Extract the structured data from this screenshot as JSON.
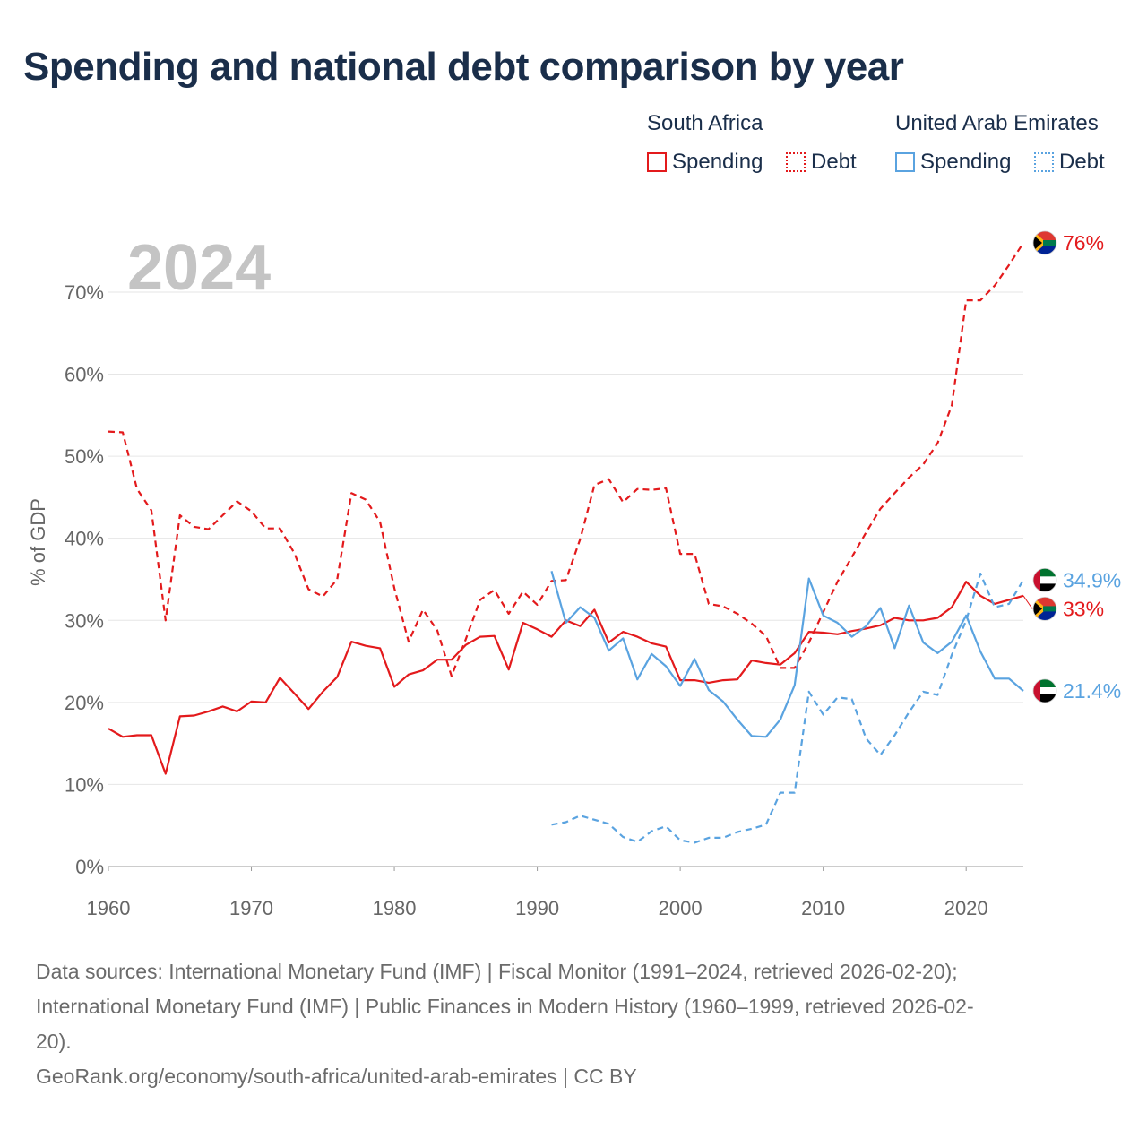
{
  "title": "Spending and national debt comparison by year",
  "legend": {
    "groups": [
      {
        "name": "South Africa",
        "color": "#e31a1c",
        "spending_label": "Spending",
        "debt_label": "Debt"
      },
      {
        "name": "United Arab Emirates",
        "color": "#5aa3e0",
        "spending_label": "Spending",
        "debt_label": "Debt"
      }
    ]
  },
  "chart_data": {
    "type": "line",
    "year_overlay": "2024",
    "ylabel": "% of GDP",
    "xlabel": "",
    "xlim": [
      1960,
      2024
    ],
    "ylim": [
      0,
      76
    ],
    "x_ticks": [
      1960,
      1970,
      1980,
      1990,
      2000,
      2010,
      2020
    ],
    "y_ticks": [
      0,
      10,
      20,
      30,
      40,
      50,
      60,
      70
    ],
    "y_tick_labels": [
      "0%",
      "10%",
      "20%",
      "30%",
      "40%",
      "50%",
      "60%",
      "70%"
    ],
    "series": [
      {
        "name": "South Africa Spending",
        "country": "South Africa",
        "kind": "spending",
        "color": "#e31a1c",
        "dashed": false,
        "end_label": "33%",
        "x": [
          1960,
          1961,
          1962,
          1963,
          1964,
          1965,
          1966,
          1967,
          1968,
          1969,
          1970,
          1971,
          1972,
          1973,
          1974,
          1975,
          1976,
          1977,
          1978,
          1979,
          1980,
          1981,
          1982,
          1983,
          1984,
          1985,
          1986,
          1987,
          1988,
          1989,
          1990,
          1991,
          1992,
          1993,
          1994,
          1995,
          1996,
          1997,
          1998,
          1999,
          2000,
          2001,
          2002,
          2003,
          2004,
          2005,
          2006,
          2007,
          2008,
          2009,
          2010,
          2011,
          2012,
          2013,
          2014,
          2015,
          2016,
          2017,
          2018,
          2019,
          2020,
          2021,
          2022,
          2023,
          2024
        ],
        "y": [
          16.8,
          15.8,
          16,
          16,
          11.3,
          18.3,
          18.4,
          18.9,
          19.5,
          18.9,
          20.1,
          20,
          23,
          21.1,
          19.2,
          21.3,
          23.1,
          27.4,
          26.9,
          26.6,
          21.9,
          23.4,
          23.9,
          25.2,
          25.2,
          27,
          28,
          28.1,
          24,
          29.7,
          28.9,
          28,
          30,
          29.3,
          31.3,
          27.3,
          28.6,
          28,
          27.2,
          26.8,
          22.7,
          22.7,
          22.4,
          22.7,
          22.8,
          25.1,
          24.8,
          24.6,
          26,
          28.6,
          28.5,
          28.3,
          28.7,
          29,
          29.4,
          30.3,
          30,
          30,
          30.3,
          31.6,
          34.7,
          33,
          32,
          32.5,
          33
        ]
      },
      {
        "name": "South Africa Debt",
        "country": "South Africa",
        "kind": "debt",
        "color": "#e31a1c",
        "dashed": true,
        "end_label": "76%",
        "x": [
          1960,
          1961,
          1962,
          1963,
          1964,
          1965,
          1966,
          1967,
          1968,
          1969,
          1970,
          1971,
          1972,
          1973,
          1974,
          1975,
          1976,
          1977,
          1978,
          1979,
          1980,
          1981,
          1982,
          1983,
          1984,
          1985,
          1986,
          1987,
          1988,
          1989,
          1990,
          1991,
          1992,
          1993,
          1994,
          1995,
          1996,
          1997,
          1998,
          1999,
          2000,
          2001,
          2002,
          2003,
          2004,
          2005,
          2006,
          2007,
          2008,
          2009,
          2010,
          2011,
          2012,
          2013,
          2014,
          2015,
          2016,
          2017,
          2018,
          2019,
          2020,
          2021,
          2022,
          2023,
          2024
        ],
        "y": [
          53,
          52.9,
          46,
          43.4,
          30,
          42.8,
          41.4,
          41.1,
          42.8,
          44.5,
          43.3,
          41.2,
          41.2,
          38.2,
          33.8,
          32.9,
          35,
          45.5,
          44.7,
          42,
          33.9,
          27.4,
          31.3,
          28.8,
          23.2,
          27.7,
          32.5,
          33.7,
          30.8,
          33.5,
          31.9,
          34.8,
          34.9,
          39.9,
          46.5,
          47.2,
          44.4,
          46,
          45.9,
          46.1,
          38.1,
          38.1,
          32,
          31.7,
          30.8,
          29.6,
          28.1,
          24.2,
          24.2,
          27.3,
          31,
          34.7,
          37.7,
          40.7,
          43.6,
          45.5,
          47.4,
          49,
          51.6,
          56.2,
          69,
          69,
          70.8,
          73.3,
          76
        ]
      },
      {
        "name": "United Arab Emirates Spending",
        "country": "United Arab Emirates",
        "kind": "spending",
        "color": "#5aa3e0",
        "dashed": false,
        "end_label": "21.4%",
        "x": [
          1991,
          1992,
          1993,
          1994,
          1995,
          1996,
          1997,
          1998,
          1999,
          2000,
          2001,
          2002,
          2003,
          2004,
          2005,
          2006,
          2007,
          2008,
          2009,
          2010,
          2011,
          2012,
          2013,
          2014,
          2015,
          2016,
          2017,
          2018,
          2019,
          2020,
          2021,
          2022,
          2023,
          2024
        ],
        "y": [
          36,
          29.7,
          31.6,
          30.3,
          26.3,
          27.8,
          22.8,
          25.9,
          24.4,
          22,
          25.3,
          21.5,
          20.1,
          17.9,
          15.9,
          15.8,
          17.9,
          22.1,
          35.1,
          30.6,
          29.7,
          28,
          29.3,
          31.5,
          26.6,
          31.8,
          27.3,
          26,
          27.4,
          30.6,
          26.2,
          22.9,
          22.9,
          21.4
        ]
      },
      {
        "name": "United Arab Emirates Debt",
        "country": "United Arab Emirates",
        "kind": "debt",
        "color": "#5aa3e0",
        "dashed": true,
        "end_label": "34.9%",
        "x": [
          1991,
          1992,
          1993,
          1994,
          1995,
          1996,
          1997,
          1998,
          1999,
          2000,
          2001,
          2002,
          2003,
          2004,
          2005,
          2006,
          2007,
          2008,
          2009,
          2010,
          2011,
          2012,
          2013,
          2014,
          2015,
          2016,
          2017,
          2018,
          2019,
          2020,
          2021,
          2022,
          2023,
          2024
        ],
        "y": [
          5.1,
          5.4,
          6.2,
          5.7,
          5.2,
          3.6,
          3,
          4.3,
          4.9,
          3.2,
          2.9,
          3.5,
          3.5,
          4.2,
          4.6,
          5.1,
          9,
          9,
          21.3,
          18.5,
          20.6,
          20.4,
          15.6,
          13.6,
          16,
          18.8,
          21.3,
          20.9,
          25.8,
          30,
          35.7,
          31.6,
          32,
          34.9
        ]
      }
    ]
  },
  "footer": {
    "sources_line1": "Data sources: International Monetary Fund (IMF) | Fiscal Monitor (1991–2024, retrieved 2026-02-20);",
    "sources_line2": "International Monetary Fund (IMF) | Public Finances in Modern History (1960–1999, retrieved 2026-02-",
    "sources_line3": "20).",
    "credit": "GeoRank.org/economy/south-africa/united-arab-emirates | CC BY"
  }
}
